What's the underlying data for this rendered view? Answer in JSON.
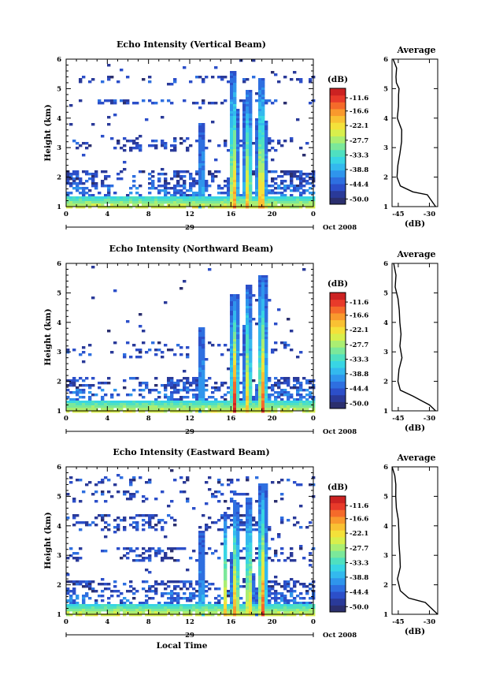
{
  "chart_data": {
    "type": "heatmap",
    "common": {
      "x_label": "Local Time",
      "y_label": "Height (km)",
      "date_day": "29",
      "date_month_year": "Oct 2008",
      "x_ticks": [
        "0",
        "4",
        "8",
        "12",
        "16",
        "20",
        "0"
      ],
      "x_range_hours": [
        0,
        24
      ],
      "y_ticks": [
        "1",
        "2",
        "3",
        "4",
        "5",
        "6"
      ],
      "y_range_km": [
        1,
        6
      ],
      "colorbar_unit": "(dB)",
      "colorbar_ticks": [
        "-11.6",
        "-16.6",
        "-22.1",
        "-27.7",
        "-33.3",
        "-38.8",
        "-44.4",
        "-50.0"
      ],
      "colorbar_range_db": [
        -52,
        -8
      ],
      "colorbar_colors": [
        "#2b2f6e",
        "#2a3a99",
        "#2c4fc9",
        "#2e6fe0",
        "#2f95ec",
        "#33b9ee",
        "#38d5e4",
        "#4fe0c0",
        "#7be89a",
        "#aaee72",
        "#d8ef4c",
        "#f4e13a",
        "#f9c133",
        "#f9992d",
        "#f56a2a",
        "#e83a2a",
        "#cc2222"
      ],
      "profile_title": "Average",
      "profile_xlabel": "(dB)",
      "profile_x_ticks": [
        "-45",
        "-30"
      ],
      "profile_x_range": [
        -48,
        -26
      ]
    },
    "panels": [
      {
        "title": "Echo Intensity (Vertical Beam)",
        "clutter": 0.55,
        "layer_bands": [
          [
            1.3,
            2.3,
            0.55
          ],
          [
            2.9,
            3.4,
            0.45
          ],
          [
            4.5,
            4.7,
            0.5
          ],
          [
            5.2,
            5.5,
            0.3
          ]
        ],
        "rain_events": [
          {
            "hour": 13.0,
            "width": 0.25,
            "top_km": 3.9,
            "peak_db": -24
          },
          {
            "hour": 16.1,
            "width": 0.55,
            "top_km": 5.6,
            "peak_db": -11
          },
          {
            "hour": 17.5,
            "width": 0.55,
            "top_km": 5.0,
            "peak_db": -16
          },
          {
            "hour": 18.8,
            "width": 0.6,
            "top_km": 5.4,
            "peak_db": -11
          }
        ],
        "profile": [
          [
            1.0,
            -27
          ],
          [
            1.2,
            -29
          ],
          [
            1.4,
            -31
          ],
          [
            1.5,
            -38
          ],
          [
            1.7,
            -44
          ],
          [
            2.0,
            -45
          ],
          [
            2.4,
            -45.5
          ],
          [
            2.8,
            -44
          ],
          [
            3.2,
            -43
          ],
          [
            3.6,
            -44
          ],
          [
            4.0,
            -45
          ],
          [
            4.4,
            -45
          ],
          [
            4.8,
            -44.5
          ],
          [
            5.0,
            -45
          ],
          [
            5.2,
            -46
          ],
          [
            5.4,
            -45.5
          ],
          [
            5.7,
            -46
          ],
          [
            6.0,
            -47
          ]
        ]
      },
      {
        "title": "Echo Intensity (Northward Beam)",
        "clutter": 0.35,
        "layer_bands": [
          [
            1.3,
            2.2,
            0.55
          ],
          [
            2.8,
            3.4,
            0.2
          ]
        ],
        "rain_events": [
          {
            "hour": 5.3,
            "width": 0.08,
            "top_km": 2.7,
            "peak_db": -36
          },
          {
            "hour": 13.0,
            "width": 0.25,
            "top_km": 3.9,
            "peak_db": -24
          },
          {
            "hour": 16.2,
            "width": 0.55,
            "top_km": 5.0,
            "peak_db": -11
          },
          {
            "hour": 17.5,
            "width": 0.5,
            "top_km": 5.3,
            "peak_db": -16
          },
          {
            "hour": 18.9,
            "width": 0.6,
            "top_km": 5.6,
            "peak_db": -11
          }
        ],
        "profile": [
          [
            1.0,
            -27
          ],
          [
            1.2,
            -30
          ],
          [
            1.35,
            -34
          ],
          [
            1.5,
            -38
          ],
          [
            1.7,
            -44
          ],
          [
            2.0,
            -45
          ],
          [
            2.4,
            -44
          ],
          [
            2.8,
            -43
          ],
          [
            3.2,
            -43.5
          ],
          [
            3.6,
            -44
          ],
          [
            4.0,
            -44.5
          ],
          [
            4.4,
            -45
          ],
          [
            4.8,
            -45.5
          ],
          [
            5.2,
            -46
          ],
          [
            5.6,
            -46.5
          ],
          [
            6.0,
            -47
          ]
        ]
      },
      {
        "title": "Echo Intensity (Eastward Beam)",
        "clutter": 0.6,
        "layer_bands": [
          [
            1.3,
            2.2,
            0.55
          ],
          [
            2.8,
            3.3,
            0.4
          ],
          [
            3.9,
            4.4,
            0.45
          ],
          [
            4.8,
            5.2,
            0.3
          ],
          [
            5.4,
            5.7,
            0.25
          ]
        ],
        "rain_events": [
          {
            "hour": 13.0,
            "width": 0.25,
            "top_km": 3.9,
            "peak_db": -24
          },
          {
            "hour": 15.3,
            "width": 0.3,
            "top_km": 4.5,
            "peak_db": -22
          },
          {
            "hour": 16.3,
            "width": 0.5,
            "top_km": 4.8,
            "peak_db": -11
          },
          {
            "hour": 17.6,
            "width": 0.5,
            "top_km": 5.0,
            "peak_db": -14
          },
          {
            "hour": 18.9,
            "width": 0.6,
            "top_km": 5.5,
            "peak_db": -11
          }
        ],
        "profile": [
          [
            1.0,
            -26
          ],
          [
            1.2,
            -29
          ],
          [
            1.4,
            -32
          ],
          [
            1.55,
            -40
          ],
          [
            1.8,
            -44
          ],
          [
            2.2,
            -45
          ],
          [
            2.6,
            -44.5
          ],
          [
            3.0,
            -44
          ],
          [
            3.4,
            -44
          ],
          [
            3.8,
            -45
          ],
          [
            4.2,
            -45.5
          ],
          [
            4.6,
            -46
          ],
          [
            5.0,
            -46
          ],
          [
            5.4,
            -46.5
          ],
          [
            5.7,
            -47
          ],
          [
            6.0,
            -47.5
          ]
        ]
      }
    ]
  }
}
